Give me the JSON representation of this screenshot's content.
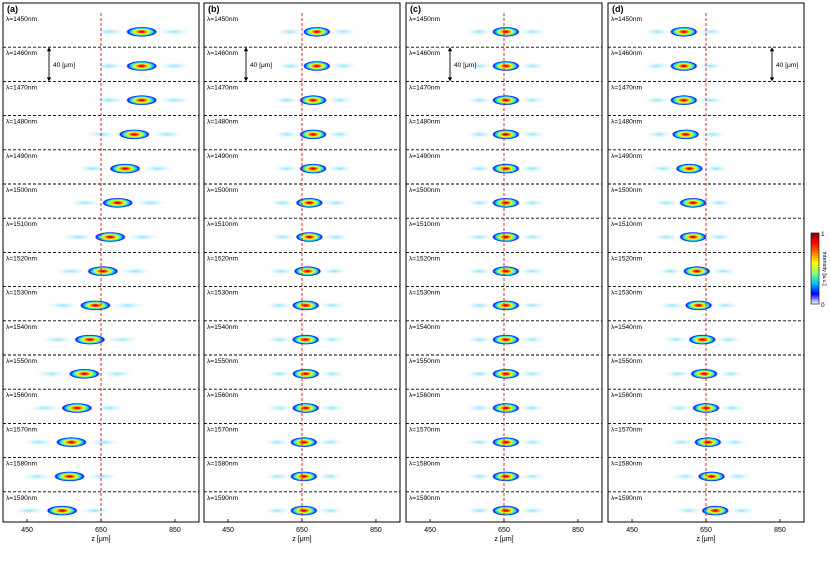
{
  "chart_data": {
    "type": "heatmap",
    "x_axis": {
      "label": "z [μm]",
      "ticks": [
        450,
        650,
        850
      ],
      "range": [
        385,
        915
      ]
    },
    "wavelength_labels": [
      "λ=1450nm",
      "λ=1460nm",
      "λ=1470nm",
      "λ=1480nm",
      "λ=1490nm",
      "λ=1500nm",
      "λ=1510nm",
      "λ=1520nm",
      "λ=1530nm",
      "λ=1540nm",
      "λ=1550nm",
      "λ=1560nm",
      "λ=1570nm",
      "λ=1580nm",
      "λ=1590nm"
    ],
    "reference_line_z": 650,
    "scale_annotation": "40 [μm]",
    "colorbar": {
      "label": "Intensity [a.u.]",
      "max_label": "1",
      "min_label": "0",
      "colormap": [
        "#00007f",
        "#0000ff",
        "#00bfff",
        "#7fff7f",
        "#ffff00",
        "#ff7f00",
        "#ff0000",
        "#7f0000"
      ]
    },
    "panels": [
      {
        "id": "(a)",
        "focus_z": [
          760,
          760,
          760,
          740,
          715,
          695,
          675,
          655,
          635,
          620,
          605,
          585,
          570,
          565,
          545
        ],
        "spot_width": 55
      },
      {
        "id": "(b)",
        "focus_z": [
          690,
          690,
          680,
          680,
          680,
          670,
          670,
          665,
          660,
          660,
          660,
          660,
          655,
          655,
          655
        ],
        "spot_width": 45
      },
      {
        "id": "(c)",
        "focus_z": [
          655,
          655,
          655,
          655,
          655,
          655,
          655,
          655,
          655,
          655,
          655,
          655,
          655,
          655,
          655
        ],
        "spot_width": 45
      },
      {
        "id": "(d)",
        "focus_z": [
          590,
          590,
          590,
          595,
          605,
          615,
          615,
          625,
          630,
          640,
          645,
          650,
          655,
          665,
          675
        ],
        "spot_width": 45
      }
    ]
  }
}
